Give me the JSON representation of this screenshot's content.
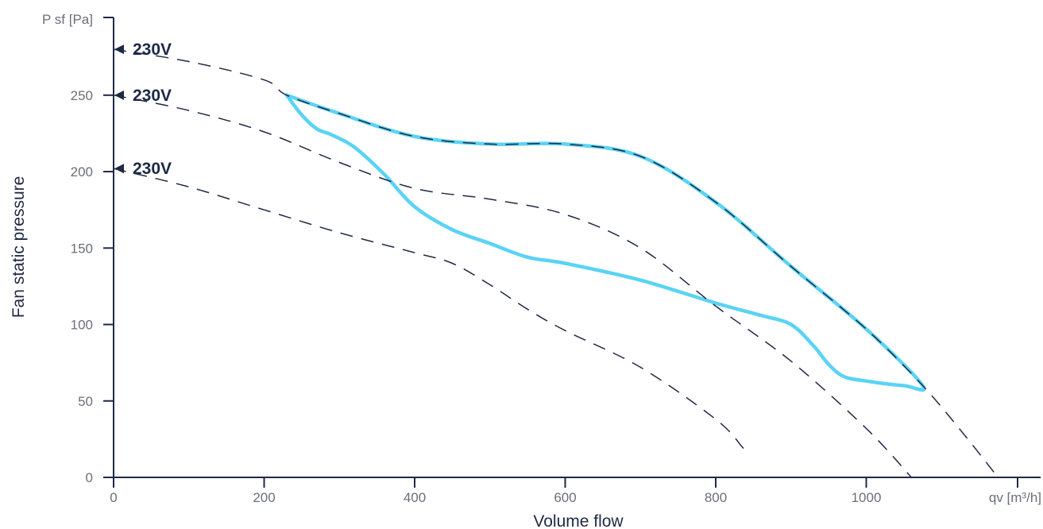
{
  "chart_data": {
    "type": "line",
    "xlabel": "Volume flow",
    "ylabel": "Fan static pressure",
    "x_unit_label": "qv [m³/h]",
    "y_unit_label": "P sf [Pa]",
    "xlim": [
      0,
      1230
    ],
    "ylim": [
      0,
      300
    ],
    "x_ticks": [
      "0",
      "200",
      "400",
      "600",
      "800",
      "1000"
    ],
    "x_tick_values": [
      0,
      200,
      400,
      600,
      800,
      1000
    ],
    "y_ticks": [
      "0",
      "50",
      "100",
      "150",
      "200",
      "250"
    ],
    "y_tick_values": [
      0,
      50,
      100,
      150,
      200,
      250
    ],
    "grid": false,
    "colors": {
      "axis": "#1e2a44",
      "curve": "#1e2a44",
      "envelope": "#5ad3f5"
    },
    "series": [
      {
        "label": "230V",
        "style": "dashed",
        "points": [
          [
            0,
            280
          ],
          [
            100,
            272
          ],
          [
            200,
            260
          ],
          [
            230,
            250
          ],
          [
            300,
            238
          ],
          [
            400,
            223
          ],
          [
            500,
            218
          ],
          [
            600,
            218
          ],
          [
            700,
            210
          ],
          [
            800,
            180
          ],
          [
            900,
            138
          ],
          [
            1000,
            97
          ],
          [
            1075,
            60
          ],
          [
            1130,
            28
          ],
          [
            1175,
            0
          ]
        ]
      },
      {
        "label": "230V",
        "style": "dashed",
        "points": [
          [
            0,
            250
          ],
          [
            100,
            240
          ],
          [
            200,
            226
          ],
          [
            300,
            206
          ],
          [
            400,
            189
          ],
          [
            500,
            182
          ],
          [
            600,
            172
          ],
          [
            700,
            150
          ],
          [
            800,
            112
          ],
          [
            900,
            76
          ],
          [
            1000,
            32
          ],
          [
            1060,
            0
          ]
        ]
      },
      {
        "label": "230V",
        "style": "dashed",
        "points": [
          [
            0,
            202
          ],
          [
            100,
            190
          ],
          [
            200,
            175
          ],
          [
            300,
            160
          ],
          [
            400,
            147
          ],
          [
            450,
            140
          ],
          [
            500,
            126
          ],
          [
            550,
            110
          ],
          [
            600,
            96
          ],
          [
            700,
            72
          ],
          [
            800,
            38
          ],
          [
            835,
            20
          ],
          [
            840,
            16
          ]
        ]
      }
    ],
    "envelope": {
      "style": "solid",
      "points": [
        [
          230,
          250
        ],
        [
          300,
          238
        ],
        [
          400,
          223
        ],
        [
          500,
          218
        ],
        [
          600,
          218
        ],
        [
          700,
          210
        ],
        [
          800,
          180
        ],
        [
          900,
          138
        ],
        [
          1000,
          97
        ],
        [
          1075,
          60
        ],
        [
          1050,
          60
        ],
        [
          1000,
          63
        ],
        [
          970,
          66
        ],
        [
          950,
          74
        ],
        [
          930,
          86
        ],
        [
          900,
          100
        ],
        [
          860,
          106
        ],
        [
          800,
          114
        ],
        [
          700,
          129
        ],
        [
          600,
          140
        ],
        [
          550,
          144
        ],
        [
          500,
          153
        ],
        [
          450,
          162
        ],
        [
          400,
          177
        ],
        [
          360,
          198
        ],
        [
          320,
          216
        ],
        [
          290,
          224
        ],
        [
          270,
          228
        ],
        [
          250,
          237
        ],
        [
          230,
          250
        ]
      ]
    }
  }
}
